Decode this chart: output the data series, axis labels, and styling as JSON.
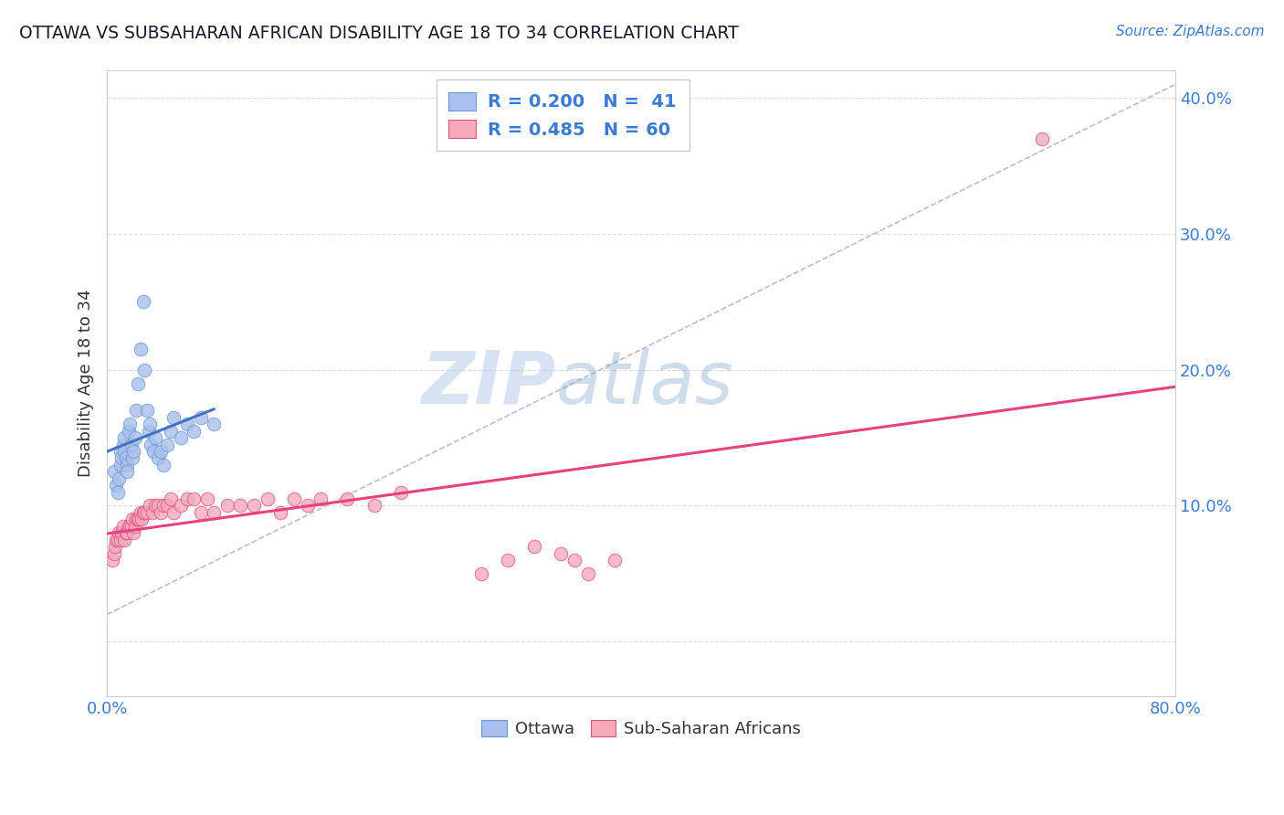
{
  "title": "OTTAWA VS SUBSAHARAN AFRICAN DISABILITY AGE 18 TO 34 CORRELATION CHART",
  "source_text": "Source: ZipAtlas.com",
  "ylabel": "Disability Age 18 to 34",
  "xlim": [
    0.0,
    0.8
  ],
  "ylim": [
    -0.04,
    0.42
  ],
  "x_ticks": [
    0.0,
    0.8
  ],
  "x_tick_labels": [
    "0.0%",
    "80.0%"
  ],
  "y_ticks": [
    0.0,
    0.1,
    0.2,
    0.3,
    0.4
  ],
  "y_tick_labels": [
    "",
    "10.0%",
    "20.0%",
    "30.0%",
    "40.0%"
  ],
  "ottawa_color": "#AABFED",
  "ottawa_edge": "#6699CC",
  "pink_color": "#F4AABB",
  "pink_edge": "#E05080",
  "trend_blue": "#4472C4",
  "trend_pink": "#E84080",
  "trend_dashed_color": "#BBBBCC",
  "legend_R_blue": "0.200",
  "legend_N_blue": "41",
  "legend_R_pink": "0.485",
  "legend_N_pink": "60",
  "ottawa_x": [
    0.005,
    0.007,
    0.008,
    0.009,
    0.01,
    0.01,
    0.011,
    0.012,
    0.013,
    0.013,
    0.014,
    0.015,
    0.015,
    0.016,
    0.017,
    0.018,
    0.019,
    0.02,
    0.021,
    0.022,
    0.023,
    0.025,
    0.027,
    0.028,
    0.03,
    0.031,
    0.032,
    0.033,
    0.035,
    0.036,
    0.038,
    0.04,
    0.042,
    0.045,
    0.048,
    0.05,
    0.055,
    0.06,
    0.065,
    0.07,
    0.08
  ],
  "ottawa_y": [
    0.125,
    0.115,
    0.11,
    0.12,
    0.13,
    0.14,
    0.135,
    0.145,
    0.15,
    0.14,
    0.135,
    0.13,
    0.125,
    0.155,
    0.16,
    0.145,
    0.135,
    0.14,
    0.15,
    0.17,
    0.19,
    0.215,
    0.25,
    0.2,
    0.17,
    0.155,
    0.16,
    0.145,
    0.14,
    0.15,
    0.135,
    0.14,
    0.13,
    0.145,
    0.155,
    0.165,
    0.15,
    0.16,
    0.155,
    0.165,
    0.16
  ],
  "pink_x": [
    0.004,
    0.005,
    0.006,
    0.007,
    0.008,
    0.009,
    0.01,
    0.011,
    0.012,
    0.013,
    0.014,
    0.015,
    0.016,
    0.017,
    0.018,
    0.019,
    0.02,
    0.021,
    0.022,
    0.023,
    0.024,
    0.025,
    0.026,
    0.027,
    0.028,
    0.03,
    0.032,
    0.034,
    0.036,
    0.038,
    0.04,
    0.042,
    0.045,
    0.048,
    0.05,
    0.055,
    0.06,
    0.065,
    0.07,
    0.075,
    0.08,
    0.09,
    0.1,
    0.11,
    0.12,
    0.13,
    0.14,
    0.15,
    0.16,
    0.18,
    0.2,
    0.22,
    0.28,
    0.3,
    0.32,
    0.34,
    0.35,
    0.36,
    0.38,
    0.7
  ],
  "pink_y": [
    0.06,
    0.065,
    0.07,
    0.075,
    0.075,
    0.08,
    0.075,
    0.08,
    0.085,
    0.075,
    0.08,
    0.08,
    0.085,
    0.085,
    0.085,
    0.09,
    0.08,
    0.085,
    0.09,
    0.09,
    0.09,
    0.095,
    0.09,
    0.095,
    0.095,
    0.095,
    0.1,
    0.095,
    0.1,
    0.1,
    0.095,
    0.1,
    0.1,
    0.105,
    0.095,
    0.1,
    0.105,
    0.105,
    0.095,
    0.105,
    0.095,
    0.1,
    0.1,
    0.1,
    0.105,
    0.095,
    0.105,
    0.1,
    0.105,
    0.105,
    0.1,
    0.11,
    0.05,
    0.06,
    0.07,
    0.065,
    0.06,
    0.05,
    0.06,
    0.37
  ],
  "watermark_zip": "ZIP",
  "watermark_atlas": "atlas",
  "background_color": "#FFFFFF",
  "grid_color": "#DDDDDD"
}
